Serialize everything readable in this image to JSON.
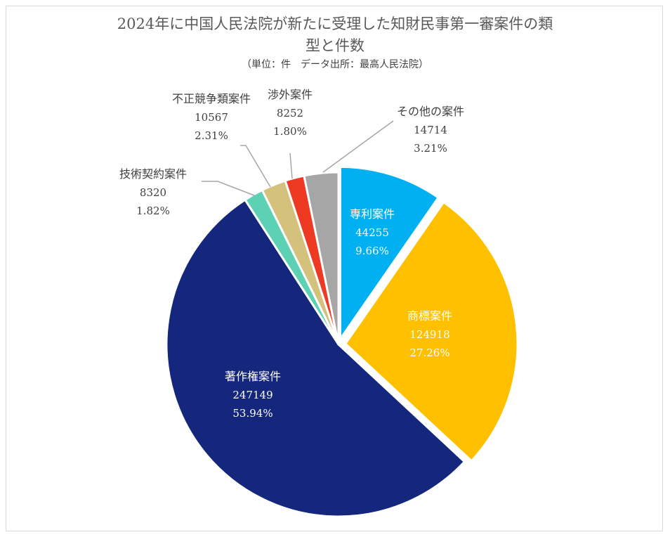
{
  "chart_data": {
    "type": "pie",
    "title_lines": [
      "2024年に中国人民法院が新たに受理した知財民事第一審案件の類",
      "型と件数"
    ],
    "subtitle": "（単位：件　データ出所：最高人民法院）",
    "slices": [
      {
        "label": "専利案件",
        "value": 44255,
        "percent": "9.66%",
        "color": "#00b0f0",
        "label_color": "#ffffff"
      },
      {
        "label": "商標案件",
        "value": 124918,
        "percent": "27.26%",
        "color": "#ffc000",
        "label_color": "#ffffff"
      },
      {
        "label": "著作権案件",
        "value": 247149,
        "percent": "53.94%",
        "color": "#14277d",
        "label_color": "#ffffff"
      },
      {
        "label": "技術契約案件",
        "value": 8320,
        "percent": "1.82%",
        "color": "#5dd1b4",
        "label_color": "#404040"
      },
      {
        "label": "不正競争類案件",
        "value": 10567,
        "percent": "2.31%",
        "color": "#d4c17b",
        "label_color": "#404040"
      },
      {
        "label": "渉外案件",
        "value": 8252,
        "percent": "1.80%",
        "color": "#ef3a23",
        "label_color": "#404040"
      },
      {
        "label": "その他の案件",
        "value": 14714,
        "percent": "3.21%",
        "color": "#a6a6a6",
        "label_color": "#404040"
      }
    ]
  }
}
